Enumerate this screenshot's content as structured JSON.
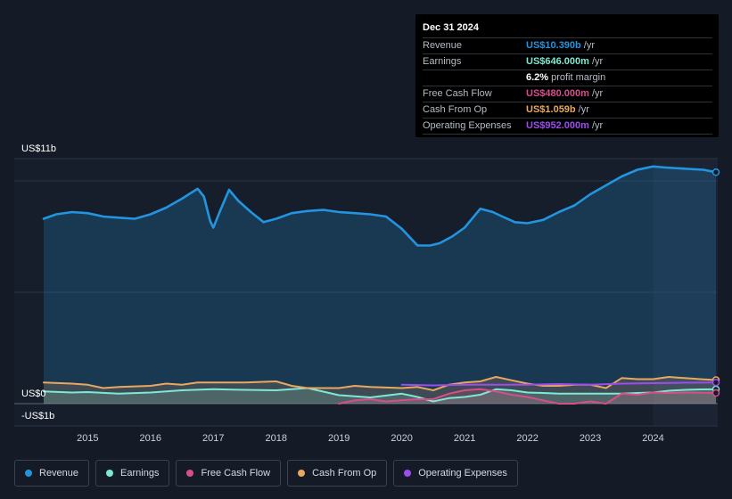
{
  "tooltip": {
    "date": "Dec 31 2024",
    "rows": [
      {
        "label": "Revenue",
        "value": "US$10.390b",
        "unit": "/yr",
        "color": "#2394df"
      },
      {
        "label": "Earnings",
        "value": "US$646.000m",
        "unit": "/yr",
        "color": "#7ee8d6"
      },
      {
        "label": "",
        "value": "6.2%",
        "unit": "profit margin",
        "color": "#ffffff"
      },
      {
        "label": "Free Cash Flow",
        "value": "US$480.000m",
        "unit": "/yr",
        "color": "#d74e8b"
      },
      {
        "label": "Cash From Op",
        "value": "US$1.059b",
        "unit": "/yr",
        "color": "#e8a860"
      },
      {
        "label": "Operating Expenses",
        "value": "US$952.000m",
        "unit": "/yr",
        "color": "#9d4cf0"
      }
    ]
  },
  "chart_data": {
    "type": "area",
    "y_top_label": "US$11b",
    "y_zero_label": "US$0",
    "y_neg_label": "-US$1b",
    "ylim": [
      -1,
      11
    ],
    "xlim": [
      2014.3,
      2025.0
    ],
    "x_ticks": [
      "2015",
      "2016",
      "2017",
      "2018",
      "2019",
      "2020",
      "2021",
      "2022",
      "2023",
      "2024"
    ],
    "grid": true,
    "legend_position": "bottom",
    "series": [
      {
        "name": "Revenue",
        "color": "#2394df",
        "fill": true,
        "x": [
          2014.3,
          2014.5,
          2014.75,
          2015.0,
          2015.25,
          2015.5,
          2015.75,
          2016.0,
          2016.25,
          2016.5,
          2016.75,
          2016.85,
          2016.95,
          2017.0,
          2017.1,
          2017.25,
          2017.4,
          2017.6,
          2017.8,
          2018.0,
          2018.25,
          2018.5,
          2018.75,
          2019.0,
          2019.25,
          2019.5,
          2019.75,
          2020.0,
          2020.25,
          2020.45,
          2020.6,
          2020.8,
          2021.0,
          2021.25,
          2021.45,
          2021.6,
          2021.8,
          2022.0,
          2022.25,
          2022.5,
          2022.75,
          2023.0,
          2023.25,
          2023.5,
          2023.75,
          2024.0,
          2024.2,
          2024.5,
          2024.8,
          2025.0
        ],
        "y": [
          8.3,
          8.5,
          8.6,
          8.55,
          8.4,
          8.35,
          8.3,
          8.5,
          8.8,
          9.2,
          9.65,
          9.3,
          8.2,
          7.9,
          8.6,
          9.6,
          9.1,
          8.6,
          8.15,
          8.3,
          8.55,
          8.65,
          8.7,
          8.6,
          8.55,
          8.5,
          8.4,
          7.85,
          7.1,
          7.1,
          7.2,
          7.5,
          7.9,
          8.75,
          8.6,
          8.4,
          8.15,
          8.1,
          8.25,
          8.6,
          8.9,
          9.4,
          9.8,
          10.2,
          10.5,
          10.65,
          10.6,
          10.55,
          10.5,
          10.39
        ]
      },
      {
        "name": "Earnings",
        "color": "#7ee8d6",
        "fill": true,
        "x": [
          2014.3,
          2014.75,
          2015.0,
          2015.5,
          2016.0,
          2016.5,
          2017.0,
          2017.5,
          2018.0,
          2018.5,
          2019.0,
          2019.5,
          2020.0,
          2020.25,
          2020.5,
          2020.75,
          2021.0,
          2021.25,
          2021.5,
          2021.75,
          2022.0,
          2022.25,
          2022.5,
          2022.75,
          2023.0,
          2023.25,
          2023.5,
          2023.75,
          2024.0,
          2024.25,
          2024.5,
          2024.75,
          2025.0
        ],
        "y": [
          0.55,
          0.5,
          0.52,
          0.45,
          0.5,
          0.6,
          0.65,
          0.62,
          0.6,
          0.7,
          0.38,
          0.28,
          0.45,
          0.3,
          0.1,
          0.25,
          0.3,
          0.4,
          0.65,
          0.6,
          0.5,
          0.48,
          0.45,
          0.45,
          0.45,
          0.45,
          0.45,
          0.48,
          0.5,
          0.58,
          0.62,
          0.64,
          0.646
        ]
      },
      {
        "name": "Free Cash Flow",
        "color": "#d74e8b",
        "fill": true,
        "x": [
          2019.0,
          2019.25,
          2019.5,
          2019.75,
          2020.0,
          2020.25,
          2020.5,
          2020.75,
          2021.0,
          2021.25,
          2021.5,
          2021.75,
          2022.0,
          2022.25,
          2022.5,
          2022.75,
          2023.0,
          2023.25,
          2023.5,
          2023.75,
          2024.0,
          2024.25,
          2024.5,
          2024.75,
          2025.0
        ],
        "y": [
          0.0,
          0.15,
          0.2,
          0.1,
          0.15,
          0.2,
          0.2,
          0.45,
          0.6,
          0.65,
          0.55,
          0.4,
          0.3,
          0.15,
          0.0,
          0.0,
          0.1,
          0.0,
          0.45,
          0.4,
          0.5,
          0.48,
          0.5,
          0.49,
          0.48
        ]
      },
      {
        "name": "Cash From Op",
        "color": "#e8a860",
        "fill": true,
        "x": [
          2014.3,
          2014.75,
          2015.0,
          2015.25,
          2015.5,
          2016.0,
          2016.25,
          2016.5,
          2016.75,
          2017.0,
          2017.5,
          2018.0,
          2018.25,
          2018.5,
          2019.0,
          2019.25,
          2019.5,
          2020.0,
          2020.25,
          2020.5,
          2020.75,
          2021.0,
          2021.25,
          2021.5,
          2021.75,
          2022.0,
          2022.25,
          2022.5,
          2022.75,
          2023.0,
          2023.25,
          2023.5,
          2023.75,
          2024.0,
          2024.25,
          2024.5,
          2024.75,
          2025.0
        ],
        "y": [
          0.95,
          0.9,
          0.85,
          0.7,
          0.75,
          0.8,
          0.9,
          0.85,
          0.95,
          0.95,
          0.95,
          1.0,
          0.8,
          0.7,
          0.7,
          0.8,
          0.75,
          0.7,
          0.75,
          0.6,
          0.85,
          0.95,
          1.0,
          1.2,
          1.05,
          0.9,
          0.8,
          0.8,
          0.85,
          0.85,
          0.7,
          1.15,
          1.1,
          1.1,
          1.2,
          1.15,
          1.1,
          1.059
        ]
      },
      {
        "name": "Operating Expenses",
        "color": "#9d4cf0",
        "fill": false,
        "x": [
          2020.0,
          2020.5,
          2021.0,
          2021.5,
          2022.0,
          2022.5,
          2023.0,
          2023.5,
          2024.0,
          2024.5,
          2025.0
        ],
        "y": [
          0.85,
          0.82,
          0.85,
          0.85,
          0.85,
          0.88,
          0.85,
          0.9,
          0.92,
          0.94,
          0.952
        ]
      }
    ]
  },
  "legend": [
    {
      "label": "Revenue",
      "color": "#2394df"
    },
    {
      "label": "Earnings",
      "color": "#7ee8d6"
    },
    {
      "label": "Free Cash Flow",
      "color": "#d74e8b"
    },
    {
      "label": "Cash From Op",
      "color": "#e8a860"
    },
    {
      "label": "Operating Expenses",
      "color": "#9d4cf0"
    }
  ]
}
